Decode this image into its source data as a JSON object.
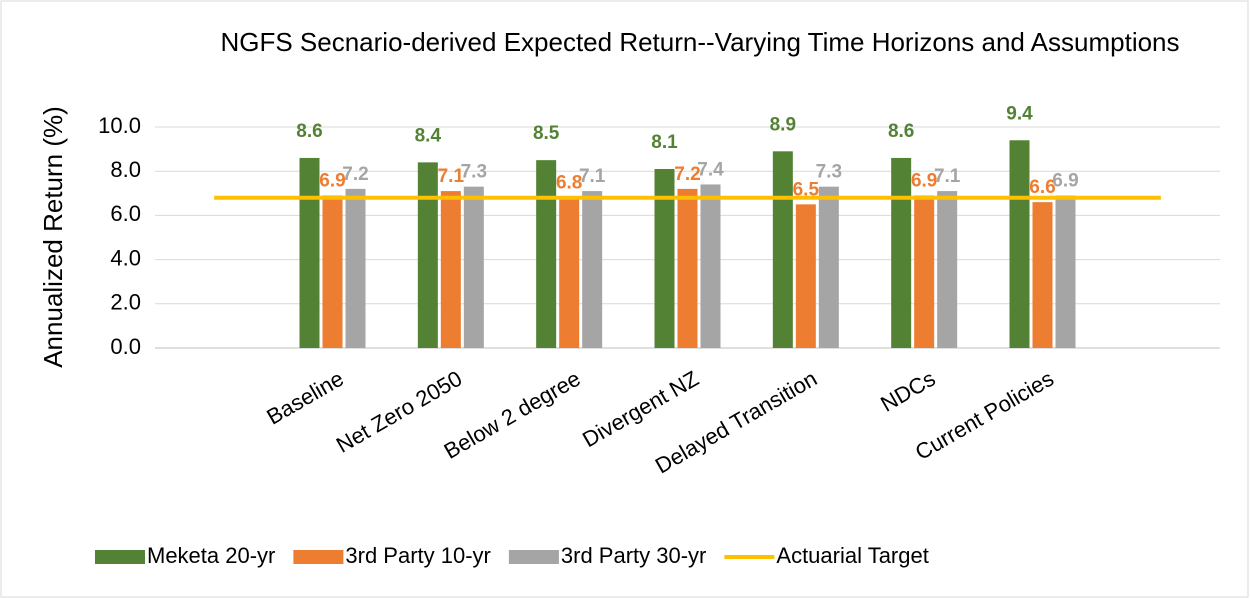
{
  "chart_data": {
    "type": "bar",
    "title": "NGFS Secnario-derived Expected Return--Varying Time Horizons and Assumptions",
    "y_label": "Annualized Return (%)",
    "categories": [
      null,
      "Baseline",
      "Net Zero 2050",
      "Below 2 degree",
      "Divergent NZ",
      "Delayed Transition",
      "NDCs",
      "Current Policies",
      null
    ],
    "series": [
      {
        "name": "Meketa 20-yr",
        "color": "#548235",
        "values": [
          null,
          8.6,
          8.4,
          8.5,
          8.1,
          8.9,
          8.6,
          9.4,
          null
        ]
      },
      {
        "name": "3rd Party 10-yr",
        "color": "#ed7d31",
        "values": [
          null,
          6.9,
          7.1,
          6.8,
          7.2,
          6.5,
          6.9,
          6.6,
          null
        ]
      },
      {
        "name": "3rd Party 30-yr",
        "color": "#a5a5a5",
        "values": [
          null,
          7.2,
          7.3,
          7.1,
          7.4,
          7.3,
          7.1,
          6.9,
          null
        ]
      },
      {
        "name": "Actuarial Target",
        "type": "line",
        "color": "#ffc000",
        "values": [
          6.8,
          6.8,
          6.8,
          6.8,
          6.8,
          6.8,
          6.8,
          6.8,
          6.8
        ]
      }
    ],
    "ylim": [
      0,
      10
    ],
    "yticks": [
      {
        "value": 0,
        "label": "0.0"
      },
      {
        "value": 2,
        "label": "2.0"
      },
      {
        "value": 4,
        "label": "4.0"
      },
      {
        "value": 6,
        "label": "6.0"
      },
      {
        "value": 8,
        "label": "8.0"
      },
      {
        "value": 10,
        "label": "10.0"
      }
    ],
    "grid": true,
    "data_labels": true,
    "legend": "bottom"
  }
}
